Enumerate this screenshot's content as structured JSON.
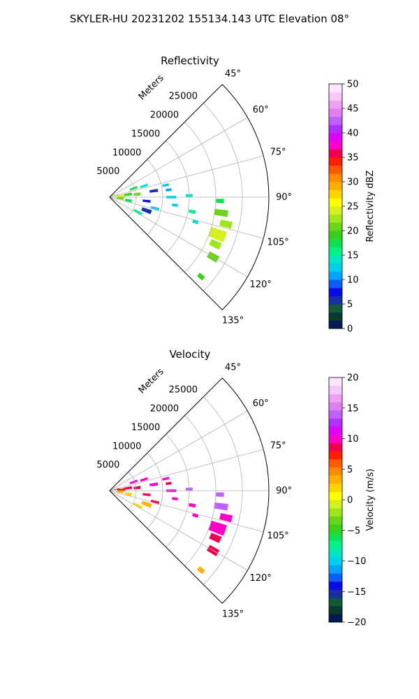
{
  "figure": {
    "title": "SKYLER-HU  20231202  155134.143 UTC Elevation 08°"
  },
  "chart_data": [
    {
      "type": "heatmap",
      "subtype": "radar-ppi-sector",
      "title": "Reflectivity",
      "radial_axis_label": "Meters",
      "radial_ticks": [
        5000,
        10000,
        15000,
        20000,
        25000
      ],
      "radial_tick_labels": [
        "5000",
        "10000",
        "15000",
        "20000",
        "25000"
      ],
      "rmax": 30000,
      "theta_range": [
        45,
        135
      ],
      "theta_ticks": [
        45,
        60,
        75,
        90,
        105,
        120,
        135
      ],
      "theta_tick_labels": [
        "45°",
        "60°",
        "75°",
        "90°",
        "105°",
        "120°",
        "135°"
      ],
      "grid": true,
      "colorbar": {
        "label": "Reflectivity dBZ",
        "min": 0,
        "max": 50,
        "ticks": [
          0,
          5,
          10,
          15,
          20,
          25,
          30,
          35,
          40,
          45,
          50
        ],
        "tick_labels": [
          "0",
          "5",
          "10",
          "15",
          "20",
          "25",
          "30",
          "35",
          "40",
          "45",
          "50"
        ],
        "colors": [
          "#041a52",
          "#0a3a2c",
          "#115a3a",
          "#1a2fa6",
          "#0a0ae6",
          "#0b5ef5",
          "#00a3ff",
          "#00d0f0",
          "#00e6c0",
          "#00f08a",
          "#10e050",
          "#39d01a",
          "#6ad41a",
          "#9ee61e",
          "#d4f01e",
          "#ffff00",
          "#ffd400",
          "#ffb000",
          "#ff8c00",
          "#ff5a00",
          "#ff1e00",
          "#f00050",
          "#ff00c8",
          "#e000ff",
          "#b030ff",
          "#c060ff",
          "#e080f0",
          "#f0a0f0",
          "#f8c8f8",
          "#fce6fc"
        ]
      },
      "cells": [
        {
          "r": 1400,
          "az": 78,
          "w": 5,
          "dr": 1000,
          "v": 22
        },
        {
          "r": 2200,
          "az": 86,
          "w": 10,
          "dr": 1400,
          "v": 24
        },
        {
          "r": 2000,
          "az": 96,
          "w": 9,
          "dr": 1200,
          "v": 21
        },
        {
          "r": 3500,
          "az": 82,
          "w": 6,
          "dr": 1400,
          "v": 19
        },
        {
          "r": 3600,
          "az": 100,
          "w": 7,
          "dr": 1200,
          "v": 18
        },
        {
          "r": 4800,
          "az": 70,
          "w": 4,
          "dr": 1400,
          "v": 17
        },
        {
          "r": 5200,
          "az": 84,
          "w": 5,
          "dr": 1200,
          "v": 20
        },
        {
          "r": 6000,
          "az": 118,
          "w": 4,
          "dr": 1600,
          "v": 16
        },
        {
          "r": 6800,
          "az": 72,
          "w": 3,
          "dr": 1400,
          "v": 14
        },
        {
          "r": 7000,
          "az": 96,
          "w": 3,
          "dr": 1400,
          "v": 8
        },
        {
          "r": 7400,
          "az": 110,
          "w": 5,
          "dr": 1800,
          "v": 6
        },
        {
          "r": 8400,
          "az": 82,
          "w": 3,
          "dr": 1500,
          "v": 5
        },
        {
          "r": 8800,
          "az": 104,
          "w": 3,
          "dr": 1500,
          "v": 13
        },
        {
          "r": 10800,
          "az": 78,
          "w": 2,
          "dr": 1200,
          "v": 13
        },
        {
          "r": 11200,
          "az": 83,
          "w": 2,
          "dr": 1000,
          "v": 10
        },
        {
          "r": 11600,
          "az": 90,
          "w": 2,
          "dr": 1800,
          "v": 13
        },
        {
          "r": 12400,
          "az": 97,
          "w": 2,
          "dr": 1000,
          "v": 12
        },
        {
          "r": 15000,
          "az": 89,
          "w": 2,
          "dr": 1200,
          "v": 14
        },
        {
          "r": 15800,
          "az": 100,
          "w": 2,
          "dr": 1200,
          "v": 16
        },
        {
          "r": 16800,
          "az": 106,
          "w": 2,
          "dr": 1000,
          "v": 14
        },
        {
          "r": 20800,
          "az": 92,
          "w": 2,
          "dr": 1400,
          "v": 18
        },
        {
          "r": 21200,
          "az": 98,
          "w": 3,
          "dr": 2500,
          "v": 20
        },
        {
          "r": 22500,
          "az": 103,
          "w": 3,
          "dr": 2200,
          "v": 22
        },
        {
          "r": 21500,
          "az": 109,
          "w": 5,
          "dr": 3000,
          "v": 24
        },
        {
          "r": 21800,
          "az": 114,
          "w": 3,
          "dr": 2000,
          "v": 22
        },
        {
          "r": 22500,
          "az": 120,
          "w": 3,
          "dr": 2000,
          "v": 21
        },
        {
          "r": 22800,
          "az": 131,
          "w": 2,
          "dr": 1200,
          "v": 19
        }
      ]
    },
    {
      "type": "heatmap",
      "subtype": "radar-ppi-sector",
      "title": "Velocity",
      "radial_axis_label": "Meters",
      "radial_ticks": [
        5000,
        10000,
        15000,
        20000,
        25000
      ],
      "radial_tick_labels": [
        "5000",
        "10000",
        "15000",
        "20000",
        "25000"
      ],
      "rmax": 30000,
      "theta_range": [
        45,
        135
      ],
      "theta_ticks": [
        45,
        60,
        75,
        90,
        105,
        120,
        135
      ],
      "theta_tick_labels": [
        "45°",
        "60°",
        "75°",
        "90°",
        "105°",
        "120°",
        "135°"
      ],
      "grid": true,
      "colorbar": {
        "label": "Velocity (m/s)",
        "min": -20,
        "max": 20,
        "ticks": [
          -20,
          -15,
          -10,
          -5,
          0,
          5,
          10,
          15,
          20
        ],
        "tick_labels": [
          "−20",
          "−15",
          "−10",
          "−5",
          "0",
          "5",
          "10",
          "15",
          "20"
        ],
        "colors": [
          "#041a52",
          "#0a3a2c",
          "#115a3a",
          "#1a2fa6",
          "#0a0ae6",
          "#0b5ef5",
          "#00a3ff",
          "#00d0f0",
          "#00e6c0",
          "#00f08a",
          "#10e050",
          "#39d01a",
          "#6ad41a",
          "#9ee61e",
          "#d4f01e",
          "#ffff00",
          "#ffd400",
          "#ffb000",
          "#ff8c00",
          "#ff5a00",
          "#ff1e00",
          "#f00050",
          "#ff00c8",
          "#e000ff",
          "#b030ff",
          "#c060ff",
          "#e080f0",
          "#f0a0f0",
          "#f8c8f8",
          "#fce6fc"
        ]
      },
      "cells": [
        {
          "r": 1400,
          "az": 78,
          "w": 5,
          "dr": 1000,
          "v": 9
        },
        {
          "r": 2200,
          "az": 86,
          "w": 10,
          "dr": 1400,
          "v": 7
        },
        {
          "r": 2000,
          "az": 96,
          "w": 9,
          "dr": 1200,
          "v": 3
        },
        {
          "r": 3500,
          "az": 82,
          "w": 6,
          "dr": 1400,
          "v": 8
        },
        {
          "r": 3600,
          "az": 100,
          "w": 7,
          "dr": 1200,
          "v": 2
        },
        {
          "r": 4800,
          "az": 70,
          "w": 4,
          "dr": 1400,
          "v": 10
        },
        {
          "r": 5200,
          "az": 84,
          "w": 5,
          "dr": 1200,
          "v": 9
        },
        {
          "r": 6000,
          "az": 118,
          "w": 4,
          "dr": 1600,
          "v": 2
        },
        {
          "r": 6800,
          "az": 72,
          "w": 3,
          "dr": 1400,
          "v": 10
        },
        {
          "r": 7000,
          "az": 96,
          "w": 3,
          "dr": 1400,
          "v": 8
        },
        {
          "r": 7400,
          "az": 110,
          "w": 5,
          "dr": 1800,
          "v": 3
        },
        {
          "r": 8400,
          "az": 82,
          "w": 3,
          "dr": 1500,
          "v": 10
        },
        {
          "r": 8800,
          "az": 104,
          "w": 3,
          "dr": 1500,
          "v": 8
        },
        {
          "r": 10800,
          "az": 78,
          "w": 2,
          "dr": 1200,
          "v": 10
        },
        {
          "r": 11200,
          "az": 83,
          "w": 2,
          "dr": 1000,
          "v": 9
        },
        {
          "r": 11600,
          "az": 90,
          "w": 2,
          "dr": 1800,
          "v": 10
        },
        {
          "r": 12400,
          "az": 97,
          "w": 2,
          "dr": 1000,
          "v": 10
        },
        {
          "r": 15000,
          "az": 89,
          "w": 2,
          "dr": 1200,
          "v": 14
        },
        {
          "r": 15800,
          "az": 100,
          "w": 2,
          "dr": 1200,
          "v": 10
        },
        {
          "r": 16800,
          "az": 106,
          "w": 2,
          "dr": 1000,
          "v": 10
        },
        {
          "r": 20800,
          "az": 92,
          "w": 2,
          "dr": 1400,
          "v": 14
        },
        {
          "r": 21200,
          "az": 98,
          "w": 3,
          "dr": 2500,
          "v": 14
        },
        {
          "r": 22500,
          "az": 103,
          "w": 3,
          "dr": 2200,
          "v": 10
        },
        {
          "r": 21500,
          "az": 109,
          "w": 5,
          "dr": 3000,
          "v": 10
        },
        {
          "r": 21800,
          "az": 114,
          "w": 3,
          "dr": 2000,
          "v": 8
        },
        {
          "r": 22500,
          "az": 120,
          "w": 3,
          "dr": 2000,
          "v": 8
        },
        {
          "r": 22800,
          "az": 131,
          "w": 2,
          "dr": 1200,
          "v": 3
        }
      ]
    }
  ]
}
